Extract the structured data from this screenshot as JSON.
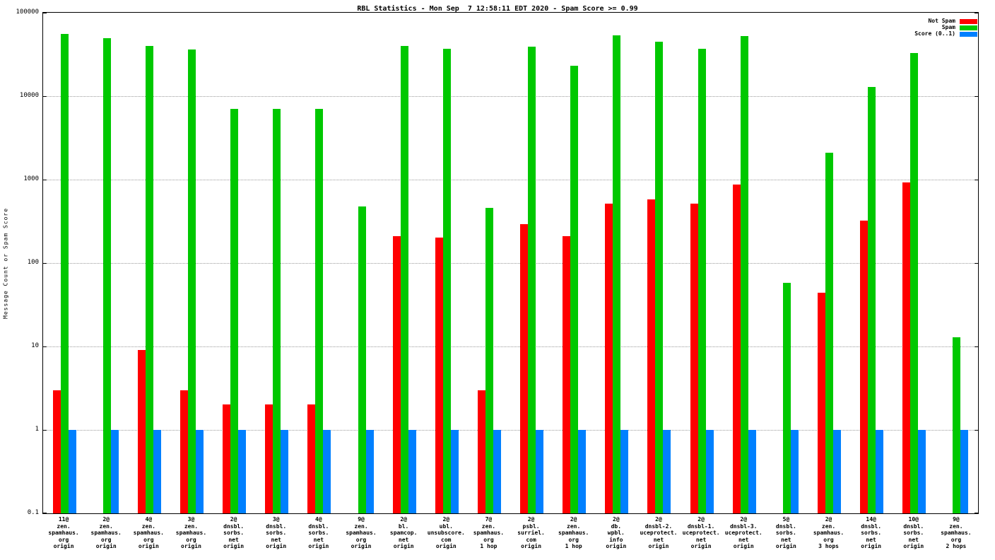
{
  "title": "RBL Statistics - Mon Sep  7 12:58:11 EDT 2020 - Spam Score >= 0.99",
  "ylabel": "Message Count or Spam Score",
  "chart_data": {
    "type": "bar",
    "y_scale": "log",
    "ylim": [
      0.1,
      100000
    ],
    "grid": true,
    "legend_position": "top-right",
    "y_ticks": [
      "100000",
      "10000",
      "1000",
      "100",
      "10",
      "1",
      "0.1"
    ],
    "categories": [
      [
        "11@",
        "zen.",
        "spamhaus.",
        "org",
        "origin"
      ],
      [
        "2@",
        "zen.",
        "spamhaus.",
        "org",
        "origin"
      ],
      [
        "4@",
        "zen.",
        "spamhaus.",
        "org",
        "origin"
      ],
      [
        "3@",
        "zen.",
        "spamhaus.",
        "org",
        "origin"
      ],
      [
        "2@",
        "dnsbl.",
        "sorbs.",
        "net",
        "origin"
      ],
      [
        "3@",
        "dnsbl.",
        "sorbs.",
        "net",
        "origin"
      ],
      [
        "4@",
        "dnsbl.",
        "sorbs.",
        "net",
        "origin"
      ],
      [
        "9@",
        "zen.",
        "spamhaus.",
        "org",
        "origin"
      ],
      [
        "2@",
        "bl.",
        "spamcop.",
        "net",
        "origin"
      ],
      [
        "2@",
        "ubl.",
        "unsubscore.",
        "com",
        "origin"
      ],
      [
        "7@",
        "zen.",
        "spamhaus.",
        "org",
        "1 hop"
      ],
      [
        "2@",
        "psbl.",
        "surriel.",
        "com",
        "origin"
      ],
      [
        "2@",
        "zen.",
        "spamhaus.",
        "org",
        "1 hop"
      ],
      [
        "2@",
        "db.",
        "wpbl.",
        "info",
        "origin"
      ],
      [
        "2@",
        "dnsbl-2.",
        "uceprotect.",
        "net",
        "origin"
      ],
      [
        "2@",
        "dnsbl-1.",
        "uceprotect.",
        "net",
        "origin"
      ],
      [
        "2@",
        "dnsbl-3.",
        "uceprotect.",
        "net",
        "origin"
      ],
      [
        "5@",
        "dnsbl.",
        "sorbs.",
        "net",
        "origin"
      ],
      [
        "2@",
        "zen.",
        "spamhaus.",
        "org",
        "3 hops"
      ],
      [
        "14@",
        "dnsbl.",
        "sorbs.",
        "net",
        "origin"
      ],
      [
        "10@",
        "dnsbl.",
        "sorbs.",
        "net",
        "origin"
      ],
      [
        "9@",
        "zen.",
        "spamhaus.",
        "org",
        "2 hops"
      ]
    ],
    "series": [
      {
        "name": "Not Spam",
        "color": "#ff0000",
        "values": [
          3,
          0,
          9,
          3,
          2,
          2,
          2,
          0,
          210,
          200,
          3,
          290,
          210,
          520,
          580,
          520,
          880,
          0,
          44,
          320,
          930,
          0
        ]
      },
      {
        "name": "Spam",
        "color": "#00c800",
        "values": [
          56000,
          50000,
          40000,
          36000,
          7000,
          7000,
          7000,
          480,
          40000,
          37000,
          460,
          39000,
          23000,
          54000,
          45000,
          37000,
          53000,
          58,
          2100,
          13000,
          33000,
          13
        ]
      },
      {
        "name": "Score (0..1)",
        "color": "#0080ff",
        "values": [
          1,
          1,
          1,
          1,
          1,
          1,
          1,
          1,
          1,
          1,
          1,
          1,
          1,
          1,
          1,
          1,
          1,
          1,
          1,
          1,
          1,
          1
        ]
      }
    ]
  }
}
